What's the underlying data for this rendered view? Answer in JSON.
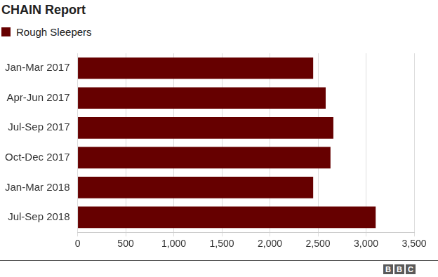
{
  "chart_data": {
    "type": "bar",
    "title": "CHAIN Report",
    "source": "BBC",
    "orientation": "horizontal",
    "categories": [
      "Jan-Mar 2017",
      "Apr-Jun 2017",
      "Jul-Sep 2017",
      "Oct-Dec 2017",
      "Jan-Mar 2018",
      "Jul-Sep 2018"
    ],
    "series": [
      {
        "name": "Rough Sleepers",
        "color": "#660000",
        "values": [
          2450,
          2580,
          2660,
          2630,
          2450,
          3100
        ]
      }
    ],
    "xlim": [
      0,
      3500
    ],
    "xticks": [
      0,
      500,
      {
        "value": 1000,
        "label": "1,000"
      },
      {
        "value": 1500,
        "label": "1,500"
      },
      {
        "value": 2000,
        "label": "2,000"
      },
      {
        "value": 2500,
        "label": "2,500"
      },
      {
        "value": 3000,
        "label": "3,000"
      },
      {
        "value": 3500,
        "label": "3,500"
      }
    ],
    "grid": true,
    "legend": "top-left"
  }
}
